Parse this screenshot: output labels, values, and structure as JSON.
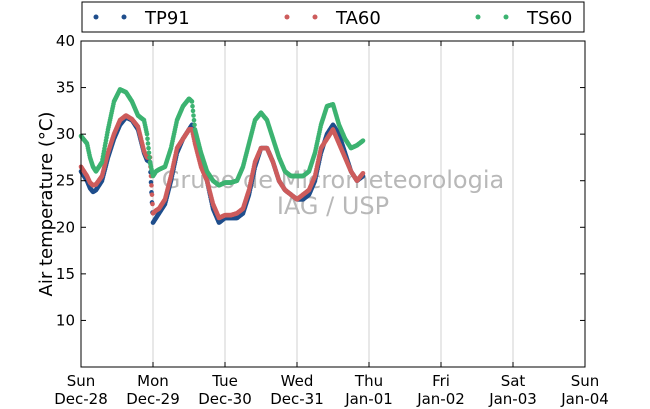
{
  "chart_data": {
    "type": "scatter",
    "ylabel": "Air temperature (°C)",
    "ylim": [
      5,
      40
    ],
    "yticks": [
      10,
      15,
      20,
      25,
      30,
      35,
      40
    ],
    "xlim": [
      "2014-12-28T00:00",
      "2015-01-04T00:00"
    ],
    "xticks": [
      {
        "day": "Sun",
        "date": "Dec-28",
        "t": "2014-12-28T00:00"
      },
      {
        "day": "Mon",
        "date": "Dec-29",
        "t": "2014-12-29T00:00"
      },
      {
        "day": "Tue",
        "date": "Dec-30",
        "t": "2014-12-30T00:00"
      },
      {
        "day": "Wed",
        "date": "Dec-31",
        "t": "2014-12-31T00:00"
      },
      {
        "day": "Thu",
        "date": "Jan-01",
        "t": "2015-01-01T00:00"
      },
      {
        "day": "Fri",
        "date": "Jan-02",
        "t": "2015-01-02T00:00"
      },
      {
        "day": "Sat",
        "date": "Jan-03",
        "t": "2015-01-03T00:00"
      },
      {
        "day": "Sun",
        "date": "Jan-04",
        "t": "2015-01-04T00:00"
      }
    ],
    "grid": "vertical",
    "legend_position": "top",
    "watermark": [
      "Grupo de Micrometeorologia",
      "IAG / USP"
    ],
    "series": [
      {
        "name": "TP91",
        "color": "#1f4e8c",
        "points": [
          [
            "2014-12-28T00:00",
            26.0
          ],
          [
            "2014-12-28T02:00",
            25.0
          ],
          [
            "2014-12-28T03:00",
            24.2
          ],
          [
            "2014-12-28T04:00",
            23.8
          ],
          [
            "2014-12-28T05:00",
            24.0
          ],
          [
            "2014-12-28T07:00",
            25.0
          ],
          [
            "2014-12-28T09:00",
            27.5
          ],
          [
            "2014-12-28T11:00",
            29.5
          ],
          [
            "2014-12-28T13:00",
            31.0
          ],
          [
            "2014-12-28T15:00",
            31.8
          ],
          [
            "2014-12-28T17:00",
            31.5
          ],
          [
            "2014-12-28T19:00",
            30.5
          ],
          [
            "2014-12-28T21:00",
            28.0
          ],
          [
            "2014-12-28T22:00",
            27.2
          ],
          [
            "2014-12-28T23:00",
            27.0
          ],
          [
            "2014-12-29T00:00",
            20.5
          ],
          [
            "2014-12-29T01:00",
            21.0
          ],
          [
            "2014-12-29T02:00",
            21.5
          ],
          [
            "2014-12-29T04:00",
            22.5
          ],
          [
            "2014-12-29T06:00",
            25.0
          ],
          [
            "2014-12-29T08:00",
            28.0
          ],
          [
            "2014-12-29T10:00",
            29.5
          ],
          [
            "2014-12-29T12:00",
            30.5
          ],
          [
            "2014-12-29T13:00",
            31.0
          ],
          [
            "2014-12-29T14:00",
            30.0
          ],
          [
            "2014-12-29T16:00",
            27.0
          ],
          [
            "2014-12-29T18:00",
            25.0
          ],
          [
            "2014-12-29T20:00",
            22.0
          ],
          [
            "2014-12-29T22:00",
            20.5
          ],
          [
            "2014-12-30T00:00",
            21.0
          ],
          [
            "2014-12-30T02:00",
            21.0
          ],
          [
            "2014-12-30T04:00",
            21.0
          ],
          [
            "2014-12-30T06:00",
            21.5
          ],
          [
            "2014-12-30T08:00",
            23.5
          ],
          [
            "2014-12-30T10:00",
            26.5
          ],
          [
            "2014-12-30T12:00",
            28.5
          ],
          [
            "2014-12-30T14:00",
            28.5
          ],
          [
            "2014-12-30T16:00",
            27.0
          ],
          [
            "2014-12-30T18:00",
            25.0
          ],
          [
            "2014-12-30T20:00",
            24.0
          ],
          [
            "2014-12-30T22:00",
            23.5
          ],
          [
            "2014-12-31T00:00",
            23.0
          ],
          [
            "2014-12-31T02:00",
            23.0
          ],
          [
            "2014-12-31T04:00",
            23.5
          ],
          [
            "2014-12-31T06:00",
            25.0
          ],
          [
            "2014-12-31T08:00",
            28.0
          ],
          [
            "2014-12-31T10:00",
            30.0
          ],
          [
            "2014-12-31T12:00",
            31.0
          ],
          [
            "2014-12-31T14:00",
            30.0
          ],
          [
            "2014-12-31T16:00",
            28.0
          ],
          [
            "2014-12-31T18:00",
            26.0
          ],
          [
            "2014-12-31T20:00",
            25.0
          ],
          [
            "2014-12-31T22:00",
            25.5
          ]
        ]
      },
      {
        "name": "TA60",
        "color": "#cd5c5c",
        "points": [
          [
            "2014-12-28T00:00",
            26.5
          ],
          [
            "2014-12-28T02:00",
            25.5
          ],
          [
            "2014-12-28T03:00",
            24.8
          ],
          [
            "2014-12-28T04:00",
            24.5
          ],
          [
            "2014-12-28T05:00",
            24.6
          ],
          [
            "2014-12-28T07:00",
            25.5
          ],
          [
            "2014-12-28T09:00",
            28.0
          ],
          [
            "2014-12-28T11:00",
            30.0
          ],
          [
            "2014-12-28T13:00",
            31.5
          ],
          [
            "2014-12-28T15:00",
            32.0
          ],
          [
            "2014-12-28T17:00",
            31.6
          ],
          [
            "2014-12-28T19:00",
            30.8
          ],
          [
            "2014-12-28T21:00",
            28.2
          ],
          [
            "2014-12-28T22:00",
            27.5
          ],
          [
            "2014-12-28T23:00",
            27.5
          ],
          [
            "2014-12-29T00:00",
            21.5
          ],
          [
            "2014-12-29T01:00",
            21.8
          ],
          [
            "2014-12-29T02:00",
            22.0
          ],
          [
            "2014-12-29T04:00",
            23.0
          ],
          [
            "2014-12-29T06:00",
            25.5
          ],
          [
            "2014-12-29T08:00",
            28.5
          ],
          [
            "2014-12-29T10:00",
            29.5
          ],
          [
            "2014-12-29T12:00",
            30.5
          ],
          [
            "2014-12-29T13:00",
            30.5
          ],
          [
            "2014-12-29T14:00",
            29.0
          ],
          [
            "2014-12-29T16:00",
            26.5
          ],
          [
            "2014-12-29T18:00",
            25.0
          ],
          [
            "2014-12-29T20:00",
            22.5
          ],
          [
            "2014-12-29T22:00",
            21.0
          ],
          [
            "2014-12-30T00:00",
            21.3
          ],
          [
            "2014-12-30T02:00",
            21.3
          ],
          [
            "2014-12-30T04:00",
            21.5
          ],
          [
            "2014-12-30T06:00",
            22.0
          ],
          [
            "2014-12-30T08:00",
            24.0
          ],
          [
            "2014-12-30T10:00",
            27.0
          ],
          [
            "2014-12-30T12:00",
            28.5
          ],
          [
            "2014-12-30T14:00",
            28.5
          ],
          [
            "2014-12-30T16:00",
            27.0
          ],
          [
            "2014-12-30T18:00",
            25.0
          ],
          [
            "2014-12-30T20:00",
            24.0
          ],
          [
            "2014-12-30T22:00",
            23.5
          ],
          [
            "2014-12-31T00:00",
            23.0
          ],
          [
            "2014-12-31T02:00",
            23.5
          ],
          [
            "2014-12-31T04:00",
            24.0
          ],
          [
            "2014-12-31T06:00",
            25.5
          ],
          [
            "2014-12-31T08:00",
            28.5
          ],
          [
            "2014-12-31T10:00",
            29.5
          ],
          [
            "2014-12-31T12:00",
            30.5
          ],
          [
            "2014-12-31T14:00",
            29.0
          ],
          [
            "2014-12-31T16:00",
            27.5
          ],
          [
            "2014-12-31T18:00",
            26.0
          ],
          [
            "2014-12-31T20:00",
            25.0
          ],
          [
            "2014-12-31T22:00",
            25.8
          ]
        ]
      },
      {
        "name": "TS60",
        "color": "#3cb371",
        "points": [
          [
            "2014-12-28T00:00",
            29.8
          ],
          [
            "2014-12-28T02:00",
            29.0
          ],
          [
            "2014-12-28T03:00",
            27.5
          ],
          [
            "2014-12-28T04:00",
            26.5
          ],
          [
            "2014-12-28T05:00",
            26.0
          ],
          [
            "2014-12-28T07:00",
            27.0
          ],
          [
            "2014-12-28T09:00",
            30.5
          ],
          [
            "2014-12-28T11:00",
            33.5
          ],
          [
            "2014-12-28T13:00",
            34.8
          ],
          [
            "2014-12-28T15:00",
            34.5
          ],
          [
            "2014-12-28T17:00",
            33.5
          ],
          [
            "2014-12-28T19:00",
            32.0
          ],
          [
            "2014-12-28T21:00",
            31.5
          ],
          [
            "2014-12-28T22:00",
            30.0
          ],
          [
            "2014-12-28T23:00",
            27.0
          ],
          [
            "2014-12-29T00:00",
            25.5
          ],
          [
            "2014-12-29T01:00",
            26.0
          ],
          [
            "2014-12-29T02:00",
            26.2
          ],
          [
            "2014-12-29T04:00",
            26.5
          ],
          [
            "2014-12-29T06:00",
            28.5
          ],
          [
            "2014-12-29T08:00",
            31.5
          ],
          [
            "2014-12-29T10:00",
            33.0
          ],
          [
            "2014-12-29T12:00",
            33.8
          ],
          [
            "2014-12-29T13:00",
            33.5
          ],
          [
            "2014-12-29T14:00",
            30.5
          ],
          [
            "2014-12-29T16:00",
            28.0
          ],
          [
            "2014-12-29T18:00",
            26.0
          ],
          [
            "2014-12-29T20:00",
            25.0
          ],
          [
            "2014-12-29T22:00",
            24.5
          ],
          [
            "2014-12-30T00:00",
            24.8
          ],
          [
            "2014-12-30T02:00",
            24.8
          ],
          [
            "2014-12-30T04:00",
            25.0
          ],
          [
            "2014-12-30T06:00",
            26.5
          ],
          [
            "2014-12-30T08:00",
            29.0
          ],
          [
            "2014-12-30T10:00",
            31.5
          ],
          [
            "2014-12-30T12:00",
            32.3
          ],
          [
            "2014-12-30T14:00",
            31.5
          ],
          [
            "2014-12-30T16:00",
            29.5
          ],
          [
            "2014-12-30T18:00",
            27.5
          ],
          [
            "2014-12-30T20:00",
            26.0
          ],
          [
            "2014-12-30T22:00",
            25.5
          ],
          [
            "2014-12-31T00:00",
            25.5
          ],
          [
            "2014-12-31T02:00",
            25.5
          ],
          [
            "2014-12-31T04:00",
            26.0
          ],
          [
            "2014-12-31T06:00",
            28.0
          ],
          [
            "2014-12-31T08:00",
            31.0
          ],
          [
            "2014-12-31T10:00",
            33.0
          ],
          [
            "2014-12-31T12:00",
            33.2
          ],
          [
            "2014-12-31T14:00",
            31.0
          ],
          [
            "2014-12-31T16:00",
            29.5
          ],
          [
            "2014-12-31T18:00",
            28.5
          ],
          [
            "2014-12-31T20:00",
            28.8
          ],
          [
            "2014-12-31T22:00",
            29.3
          ]
        ]
      }
    ]
  }
}
